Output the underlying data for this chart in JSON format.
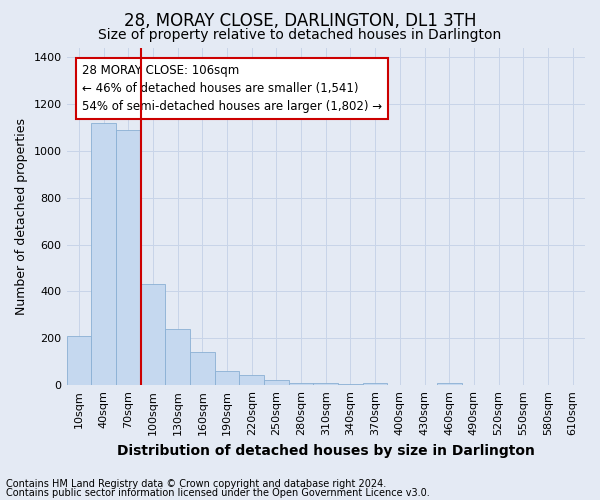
{
  "title": "28, MORAY CLOSE, DARLINGTON, DL1 3TH",
  "subtitle": "Size of property relative to detached houses in Darlington",
  "xlabel": "Distribution of detached houses by size in Darlington",
  "ylabel": "Number of detached properties",
  "footnote1": "Contains HM Land Registry data © Crown copyright and database right 2024.",
  "footnote2": "Contains public sector information licensed under the Open Government Licence v3.0.",
  "categories": [
    "10sqm",
    "40sqm",
    "70sqm",
    "100sqm",
    "130sqm",
    "160sqm",
    "190sqm",
    "220sqm",
    "250sqm",
    "280sqm",
    "310sqm",
    "340sqm",
    "370sqm",
    "400sqm",
    "430sqm",
    "460sqm",
    "490sqm",
    "520sqm",
    "550sqm",
    "580sqm",
    "610sqm"
  ],
  "values": [
    210,
    1120,
    1090,
    430,
    240,
    140,
    60,
    45,
    22,
    10,
    10,
    5,
    10,
    0,
    0,
    10,
    0,
    0,
    0,
    0,
    0
  ],
  "bar_color": "#c5d8ef",
  "bar_edge_color": "#8ab0d4",
  "annotation_text": "28 MORAY CLOSE: 106sqm\n← 46% of detached houses are smaller (1,541)\n54% of semi-detached houses are larger (1,802) →",
  "annotation_box_color": "#ffffff",
  "annotation_box_edge_color": "#cc0000",
  "vline_color": "#cc0000",
  "ylim": [
    0,
    1440
  ],
  "yticks": [
    0,
    200,
    400,
    600,
    800,
    1000,
    1200,
    1400
  ],
  "grid_color": "#c8d4e8",
  "background_color": "#e4eaf4",
  "title_fontsize": 12,
  "subtitle_fontsize": 10,
  "xlabel_fontsize": 10,
  "ylabel_fontsize": 9,
  "tick_fontsize": 8,
  "footnote_fontsize": 7
}
